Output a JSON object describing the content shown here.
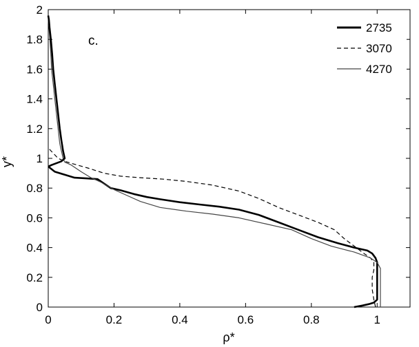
{
  "chart_data": {
    "type": "line",
    "panel_label": "c.",
    "xlabel": "ρ*",
    "ylabel": "y*",
    "xlim": [
      0,
      1.1
    ],
    "ylim": [
      0,
      2
    ],
    "xticks": [
      "0",
      "0.2",
      "0.4",
      "0.6",
      "0.8",
      "1"
    ],
    "yticks": [
      "0",
      "0.2",
      "0.4",
      "0.6",
      "0.8",
      "1",
      "1.2",
      "1.4",
      "1.6",
      "1.8",
      "2"
    ],
    "grid": false,
    "legend_position": "top-right",
    "series": [
      {
        "name": "2735",
        "style": "thick-solid",
        "color": "#000000",
        "points": [
          [
            0.93,
            0
          ],
          [
            0.955,
            0.01
          ],
          [
            0.975,
            0.02
          ],
          [
            0.99,
            0.03
          ],
          [
            1.0,
            0.05
          ],
          [
            1.0,
            0.1
          ],
          [
            1.0,
            0.2
          ],
          [
            1.0,
            0.3
          ],
          [
            0.995,
            0.33
          ],
          [
            0.985,
            0.36
          ],
          [
            0.97,
            0.38
          ],
          [
            0.93,
            0.4
          ],
          [
            0.88,
            0.43
          ],
          [
            0.82,
            0.47
          ],
          [
            0.76,
            0.52
          ],
          [
            0.7,
            0.57
          ],
          [
            0.64,
            0.62
          ],
          [
            0.58,
            0.655
          ],
          [
            0.52,
            0.675
          ],
          [
            0.46,
            0.69
          ],
          [
            0.4,
            0.705
          ],
          [
            0.34,
            0.725
          ],
          [
            0.3,
            0.74
          ],
          [
            0.26,
            0.76
          ],
          [
            0.22,
            0.785
          ],
          [
            0.19,
            0.8
          ],
          [
            0.17,
            0.83
          ],
          [
            0.15,
            0.86
          ],
          [
            0.12,
            0.865
          ],
          [
            0.08,
            0.87
          ],
          [
            0.05,
            0.89
          ],
          [
            0.02,
            0.91
          ],
          [
            0.0,
            0.945
          ]
        ]
      },
      {
        "name": "3070",
        "style": "dashed",
        "color": "#000000",
        "points": [
          [
            0.995,
            0
          ],
          [
            0.99,
            0.05
          ],
          [
            0.985,
            0.12
          ],
          [
            0.985,
            0.2
          ],
          [
            0.99,
            0.25
          ],
          [
            0.99,
            0.3
          ],
          [
            0.98,
            0.33
          ],
          [
            0.96,
            0.36
          ],
          [
            0.93,
            0.41
          ],
          [
            0.9,
            0.46
          ],
          [
            0.87,
            0.52
          ],
          [
            0.82,
            0.57
          ],
          [
            0.76,
            0.62
          ],
          [
            0.7,
            0.67
          ],
          [
            0.64,
            0.73
          ],
          [
            0.58,
            0.78
          ],
          [
            0.5,
            0.82
          ],
          [
            0.42,
            0.845
          ],
          [
            0.35,
            0.86
          ],
          [
            0.28,
            0.87
          ],
          [
            0.22,
            0.88
          ],
          [
            0.17,
            0.9
          ],
          [
            0.12,
            0.935
          ],
          [
            0.08,
            0.96
          ],
          [
            0.05,
            0.98
          ],
          [
            0.03,
            1.0
          ],
          [
            0.0,
            1.07
          ]
        ]
      },
      {
        "name": "4270",
        "style": "thin-solid",
        "color": "#444444",
        "points": [
          [
            1.01,
            0
          ],
          [
            1.01,
            0.1
          ],
          [
            1.01,
            0.2
          ],
          [
            1.01,
            0.26
          ],
          [
            1.0,
            0.3
          ],
          [
            0.98,
            0.33
          ],
          [
            0.93,
            0.37
          ],
          [
            0.86,
            0.41
          ],
          [
            0.8,
            0.46
          ],
          [
            0.74,
            0.52
          ],
          [
            0.66,
            0.56
          ],
          [
            0.58,
            0.6
          ],
          [
            0.5,
            0.625
          ],
          [
            0.42,
            0.645
          ],
          [
            0.34,
            0.67
          ],
          [
            0.28,
            0.71
          ],
          [
            0.24,
            0.75
          ],
          [
            0.2,
            0.79
          ],
          [
            0.16,
            0.84
          ],
          [
            0.13,
            0.87
          ],
          [
            0.1,
            0.91
          ],
          [
            0.07,
            0.955
          ],
          [
            0.05,
            0.975
          ],
          [
            0.045,
            1.0
          ],
          [
            0.04,
            1.05
          ],
          [
            0.035,
            1.1
          ],
          [
            0.03,
            1.2
          ],
          [
            0.025,
            1.3
          ],
          [
            0.02,
            1.4
          ],
          [
            0.015,
            1.5
          ],
          [
            0.01,
            1.6
          ],
          [
            0.008,
            1.7
          ],
          [
            0.005,
            1.8
          ],
          [
            0.002,
            1.88
          ],
          [
            0.0,
            1.93
          ]
        ]
      }
    ],
    "upper_branch_2735": [
      [
        0.0,
        0.945
      ],
      [
        0.01,
        0.955
      ],
      [
        0.04,
        0.98
      ],
      [
        0.05,
        1.0
      ],
      [
        0.045,
        1.05
      ],
      [
        0.04,
        1.12
      ],
      [
        0.035,
        1.2
      ],
      [
        0.03,
        1.3
      ],
      [
        0.025,
        1.4
      ],
      [
        0.02,
        1.5
      ],
      [
        0.015,
        1.6
      ],
      [
        0.012,
        1.7
      ],
      [
        0.008,
        1.8
      ],
      [
        0.004,
        1.88
      ],
      [
        0.002,
        1.93
      ],
      [
        0.0,
        1.96
      ]
    ]
  }
}
